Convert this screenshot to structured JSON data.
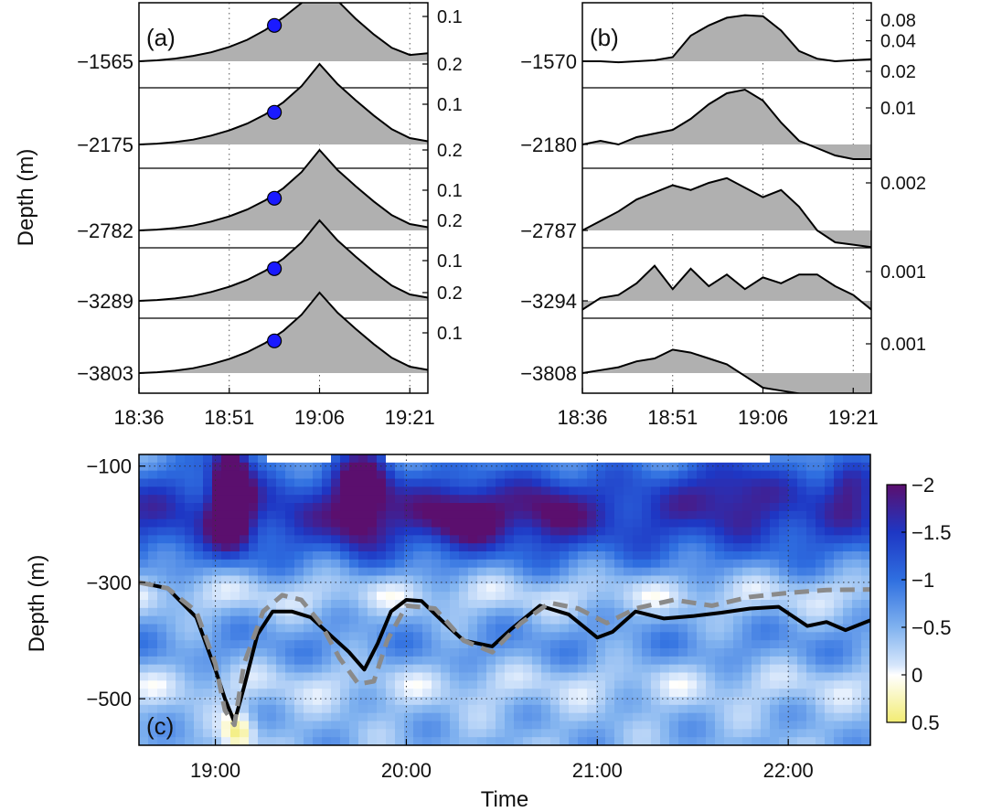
{
  "chart_data": [
    {
      "panel": "(a)",
      "type": "area",
      "ylabel": "Depth (m)",
      "x_tick_labels": [
        "18:36",
        "18:51",
        "19:06",
        "19:21"
      ],
      "x_minutes_after_18_36": [
        0,
        3,
        6,
        9,
        12,
        15,
        18,
        21,
        24,
        27,
        30,
        33,
        36,
        39,
        42,
        45,
        48
      ],
      "vertical_grid": [
        "18:51",
        "19:06",
        "19:21"
      ],
      "series": [
        {
          "depth_label": "−1565",
          "right_ticks": [
            "0.2",
            "0.1"
          ],
          "right_tick_values": [
            0.2,
            0.1
          ],
          "values": [
            0.0,
            0.002,
            0.006,
            0.012,
            0.02,
            0.032,
            0.048,
            0.07,
            0.098,
            0.13,
            0.185,
            0.135,
            0.095,
            0.06,
            0.03,
            0.014,
            0.018
          ],
          "marker_time_min": 22.5,
          "marker_value": 0.08
        },
        {
          "depth_label": "−2175",
          "right_ticks": [
            "0.2",
            "0.1"
          ],
          "right_tick_values": [
            0.2,
            0.1
          ],
          "values": [
            0.0,
            0.002,
            0.006,
            0.012,
            0.022,
            0.035,
            0.052,
            0.075,
            0.105,
            0.145,
            0.2,
            0.15,
            0.11,
            0.072,
            0.038,
            0.016,
            0.008
          ],
          "marker_time_min": 22.5,
          "marker_value": 0.08
        },
        {
          "depth_label": "−2782",
          "right_ticks": [
            "0.2",
            "0.1"
          ],
          "right_tick_values": [
            0.2,
            0.1
          ],
          "values": [
            0.0,
            0.002,
            0.006,
            0.012,
            0.022,
            0.035,
            0.052,
            0.075,
            0.105,
            0.145,
            0.2,
            0.15,
            0.11,
            0.072,
            0.038,
            0.016,
            0.008
          ],
          "marker_time_min": 22.5,
          "marker_value": 0.08
        },
        {
          "depth_label": "−3289",
          "right_ticks": [
            "0.2",
            "0.1"
          ],
          "right_tick_values": [
            0.2,
            0.1
          ],
          "values": [
            0.0,
            0.002,
            0.006,
            0.012,
            0.022,
            0.035,
            0.052,
            0.075,
            0.105,
            0.145,
            0.2,
            0.15,
            0.11,
            0.072,
            0.038,
            0.016,
            0.008
          ],
          "marker_time_min": 22.5,
          "marker_value": 0.08
        },
        {
          "depth_label": "−3803",
          "right_ticks": [
            "0.2",
            "0.1"
          ],
          "right_tick_values": [
            0.2,
            0.1
          ],
          "values": [
            0.0,
            0.002,
            0.006,
            0.012,
            0.022,
            0.035,
            0.052,
            0.075,
            0.105,
            0.145,
            0.2,
            0.15,
            0.11,
            0.072,
            0.038,
            0.016,
            0.008
          ],
          "marker_time_min": 22.5,
          "marker_value": 0.08
        }
      ]
    },
    {
      "panel": "(b)",
      "type": "area",
      "x_tick_labels": [
        "18:36",
        "18:51",
        "19:06",
        "19:21"
      ],
      "x_minutes_after_18_36": [
        0,
        3,
        6,
        9,
        12,
        15,
        18,
        21,
        24,
        27,
        30,
        33,
        36,
        39,
        42,
        45,
        48
      ],
      "vertical_grid": [
        "18:51",
        "19:06",
        "19:21"
      ],
      "series": [
        {
          "depth_label": "−1570",
          "right_ticks": [
            "0.08",
            "0.04"
          ],
          "right_tick_values": [
            0.08,
            0.04
          ],
          "values": [
            0.0,
            0.0,
            -0.002,
            0.0,
            0.002,
            0.008,
            0.05,
            0.07,
            0.085,
            0.09,
            0.088,
            0.06,
            0.02,
            0.005,
            0.0,
            0.002,
            0.004
          ]
        },
        {
          "depth_label": "−2180",
          "right_ticks": [
            "0.02",
            "0.01"
          ],
          "right_tick_values": [
            0.02,
            0.01
          ],
          "values": [
            0.0,
            0.001,
            0.0,
            0.002,
            0.003,
            0.004,
            0.007,
            0.011,
            0.014,
            0.015,
            0.012,
            0.006,
            0.001,
            -0.001,
            -0.003,
            -0.004,
            -0.004
          ]
        },
        {
          "depth_label": "−2787",
          "right_ticks": [
            "0.002"
          ],
          "right_tick_values": [
            0.002
          ],
          "values": [
            0.0,
            0.0004,
            0.0008,
            0.0013,
            0.0016,
            0.0019,
            0.0017,
            0.002,
            0.0022,
            0.0018,
            0.0014,
            0.0017,
            0.001,
            0.0,
            -0.0005,
            -0.0006,
            -0.0007
          ]
        },
        {
          "depth_label": "−3294",
          "right_ticks": [
            "0.001"
          ],
          "right_tick_values": [
            0.001
          ],
          "values": [
            -0.0003,
            0.0001,
            0.0002,
            0.0006,
            0.0012,
            0.0004,
            0.0011,
            0.0005,
            0.0009,
            0.0004,
            0.0008,
            0.0006,
            0.0009,
            0.0009,
            0.0005,
            0.0002,
            -0.0003
          ]
        },
        {
          "depth_label": "−3808",
          "right_ticks": [
            "0.001"
          ],
          "right_tick_values": [
            0.001
          ],
          "values": [
            0.0,
            0.0001,
            0.0002,
            0.0004,
            0.0005,
            0.0008,
            0.0007,
            0.0005,
            0.0003,
            -0.0001,
            -0.0005,
            -0.0006,
            -0.0007,
            -0.0008,
            -0.0008,
            -0.0009,
            -0.0009
          ]
        }
      ]
    },
    {
      "panel": "(c)",
      "type": "heatmap",
      "xlabel": "Time",
      "ylabel": "Depth (m)",
      "x_tick_labels": [
        "19:00",
        "20:00",
        "21:00",
        "22:00"
      ],
      "x_tick_hours": [
        19,
        20,
        21,
        22
      ],
      "x_range_hours": [
        18.6,
        22.43
      ],
      "y_tick_labels": [
        "−100",
        "−300",
        "−500"
      ],
      "y_tick_values": [
        -100,
        -300,
        -500
      ],
      "y_range": [
        -580,
        -80
      ],
      "colorbar": {
        "tick_labels": [
          "−2",
          "−1.5",
          "−1",
          "−0.5",
          "0",
          "0.5"
        ],
        "tick_values": [
          -2,
          -1.5,
          -1,
          -0.5,
          0,
          0.5
        ],
        "range": [
          -2,
          0.5
        ],
        "stops": [
          {
            "value": -2.0,
            "color": "#5b0f6e"
          },
          {
            "value": -1.5,
            "color": "#1e37c4"
          },
          {
            "value": -1.0,
            "color": "#2f6fe0"
          },
          {
            "value": -0.5,
            "color": "#80b2ef"
          },
          {
            "value": -0.1,
            "color": "#d6e6fb"
          },
          {
            "value": 0.0,
            "color": "#ffffff"
          },
          {
            "value": 0.5,
            "color": "#f2ec72"
          }
        ]
      },
      "colors": {
        "solid_line": "#000000",
        "dashed_line": "#8a8a8a"
      },
      "series": [
        {
          "style": "solid-black",
          "x": [
            18.6,
            18.75,
            18.9,
            19.0,
            19.05,
            19.1,
            19.15,
            19.22,
            19.3,
            19.4,
            19.5,
            19.6,
            19.7,
            19.78,
            19.85,
            19.92,
            20.0,
            20.08,
            20.2,
            20.3,
            20.45,
            20.55,
            20.7,
            20.85,
            21.0,
            21.08,
            21.2,
            21.35,
            21.5,
            21.65,
            21.8,
            21.95,
            22.1,
            22.2,
            22.3,
            22.43
          ],
          "y": [
            -300,
            -310,
            -360,
            -450,
            -500,
            -540,
            -480,
            -390,
            -350,
            -350,
            -360,
            -390,
            -420,
            -450,
            -405,
            -350,
            -330,
            -332,
            -370,
            -400,
            -410,
            -380,
            -340,
            -355,
            -395,
            -385,
            -350,
            -362,
            -358,
            -352,
            -345,
            -342,
            -375,
            -368,
            -382,
            -365
          ]
        },
        {
          "style": "dashed-gray",
          "x": [
            18.6,
            18.75,
            18.9,
            19.0,
            19.05,
            19.1,
            19.15,
            19.25,
            19.35,
            19.45,
            19.55,
            19.65,
            19.75,
            19.83,
            19.9,
            20.0,
            20.15,
            20.3,
            20.45,
            20.6,
            20.75,
            20.9,
            21.05,
            21.2,
            21.4,
            21.6,
            21.8,
            22.0,
            22.2,
            22.43
          ],
          "y": [
            -300,
            -310,
            -350,
            -440,
            -520,
            -545,
            -440,
            -350,
            -322,
            -330,
            -370,
            -430,
            -475,
            -470,
            -400,
            -340,
            -345,
            -400,
            -420,
            -370,
            -335,
            -345,
            -370,
            -345,
            -330,
            -340,
            -325,
            -318,
            -313,
            -312
          ]
        }
      ]
    }
  ]
}
